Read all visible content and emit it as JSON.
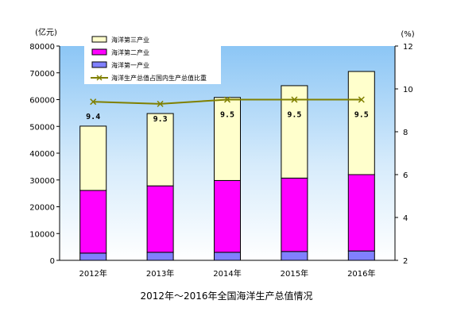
{
  "chart_data": {
    "type": "bar",
    "stacked": true,
    "categories": [
      "2012年",
      "2013年",
      "2014年",
      "2015年",
      "2016年"
    ],
    "series": [
      {
        "name": "海洋第一产业",
        "values": [
          2700,
          3000,
          3000,
          3300,
          3500
        ],
        "color": "#8080ff"
      },
      {
        "name": "海洋第二产业",
        "values": [
          23400,
          24800,
          26800,
          27400,
          28500
        ],
        "color": "#ff00ff"
      },
      {
        "name": "海洋第三产业",
        "values": [
          24000,
          27000,
          31000,
          34500,
          38500
        ],
        "color": "#ffffcc"
      }
    ],
    "line": {
      "name": "海洋生产总值占国内生产总值比重",
      "values": [
        9.4,
        9.3,
        9.5,
        9.5,
        9.5
      ],
      "labels": [
        "9.4",
        "9.3",
        "9.5",
        "9.5",
        "9.5"
      ],
      "color": "#808000"
    },
    "left_axis": {
      "unit": "(亿元)",
      "min": 0,
      "max": 80000,
      "ticks": [
        "0",
        "10000",
        "20000",
        "30000",
        "40000",
        "50000",
        "60000",
        "70000",
        "80000"
      ]
    },
    "right_axis": {
      "unit": "(%)",
      "min": 2,
      "max": 12,
      "ticks": [
        "2",
        "4",
        "6",
        "8",
        "10",
        "12"
      ]
    },
    "legend_order": [
      "海洋第三产业",
      "海洋第二产业",
      "海洋第一产业",
      "海洋生产总值占国内生产总值比重"
    ],
    "legend_position": "top-left",
    "plot_background": "#a6d2f7",
    "grid": false,
    "caption": "2012年～2016年全国海洋生产总值情况"
  }
}
